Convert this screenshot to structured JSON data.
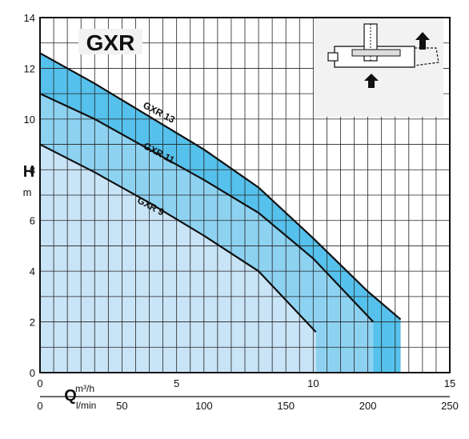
{
  "chart_data": {
    "type": "area",
    "title": "GXR",
    "ylabel": "H",
    "yunit": "m",
    "xlabel": "Q",
    "x_unit_primary": "m³/h",
    "x_unit_secondary": "l/min",
    "xlim": [
      0,
      15
    ],
    "ylim": [
      0,
      14
    ],
    "x_ticks": [
      "0",
      "5",
      "10",
      "15"
    ],
    "x2_ticks": [
      "0",
      "50",
      "100",
      "150",
      "200",
      "250"
    ],
    "y_ticks": [
      "0",
      "2",
      "4",
      "6",
      "8",
      "10",
      "12",
      "14"
    ],
    "grid": true,
    "series": [
      {
        "name": "GXR 13",
        "color": "#55c1ec",
        "points": [
          [
            0,
            12.6
          ],
          [
            2,
            11.4
          ],
          [
            4,
            10.1
          ],
          [
            6,
            8.8
          ],
          [
            8,
            7.3
          ],
          [
            10,
            5.3
          ],
          [
            12,
            3.2
          ],
          [
            13.2,
            2.1
          ]
        ]
      },
      {
        "name": "GXR 11",
        "color": "#8ed2f2",
        "points": [
          [
            0,
            11.0
          ],
          [
            2,
            10.0
          ],
          [
            4,
            8.8
          ],
          [
            6,
            7.6
          ],
          [
            8,
            6.3
          ],
          [
            10,
            4.5
          ],
          [
            12.2,
            2.0
          ]
        ]
      },
      {
        "name": "GXR 9",
        "color": "#c9e4f7",
        "points": [
          [
            0,
            9.0
          ],
          [
            2,
            7.9
          ],
          [
            4,
            6.7
          ],
          [
            6,
            5.4
          ],
          [
            8,
            4.0
          ],
          [
            10.1,
            1.6
          ]
        ]
      }
    ]
  }
}
